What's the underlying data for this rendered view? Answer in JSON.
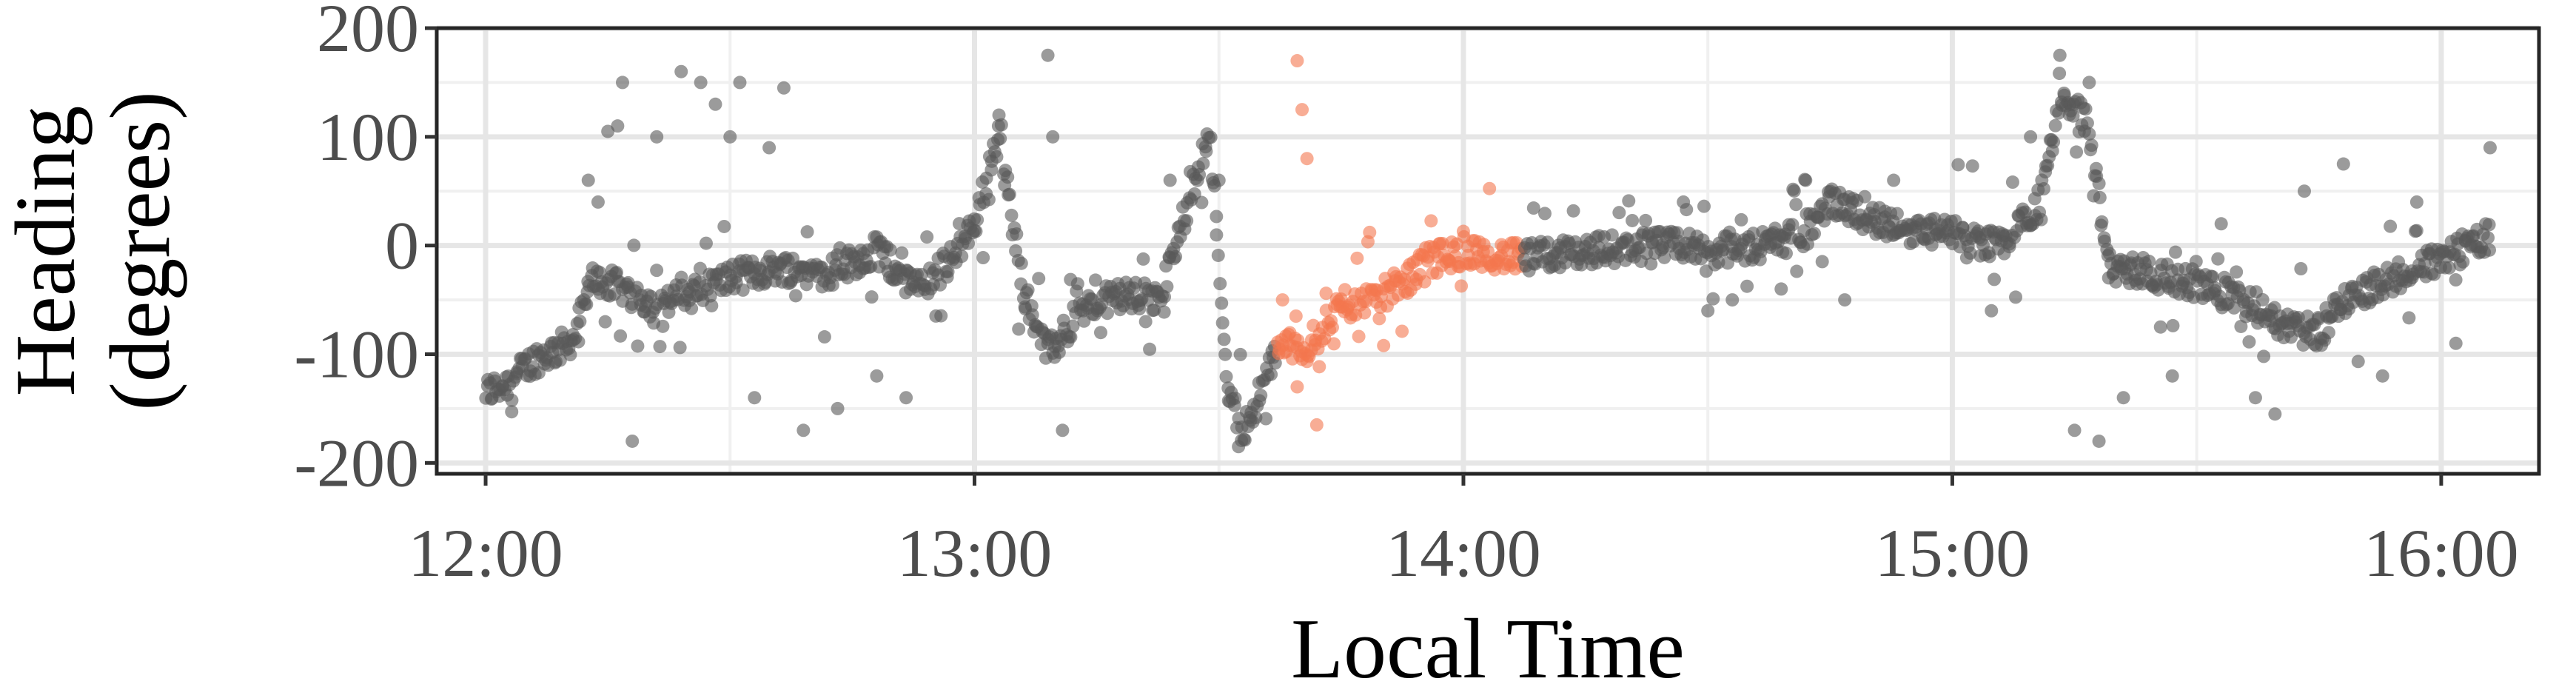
{
  "chart_data": {
    "type": "scatter",
    "xlabel": "Local Time",
    "ylabel_lines": [
      "Heading",
      "(degrees)"
    ],
    "xlim": [
      11.9,
      16.2
    ],
    "ylim": [
      -210,
      200
    ],
    "x_ticks": [
      12,
      13,
      14,
      15,
      16
    ],
    "x_tick_labels": [
      "12:00",
      "13:00",
      "14:00",
      "15:00",
      "16:00"
    ],
    "y_ticks": [
      -200,
      -100,
      0,
      100,
      200
    ],
    "y_tick_labels": [
      "-200",
      "-100",
      "0",
      "100",
      "200"
    ],
    "grid": true,
    "colors": {
      "default": "#595959",
      "highlight": "#f4764e"
    },
    "highlight_range": [
      13.62,
      14.12
    ],
    "trend": [
      [
        12.0,
        -135
      ],
      [
        12.05,
        -125
      ],
      [
        12.1,
        -105
      ],
      [
        12.15,
        -95
      ],
      [
        12.18,
        -85
      ],
      [
        12.22,
        -30
      ],
      [
        12.28,
        -40
      ],
      [
        12.35,
        -55
      ],
      [
        12.42,
        -45
      ],
      [
        12.5,
        -30
      ],
      [
        12.6,
        -20
      ],
      [
        12.7,
        -25
      ],
      [
        12.8,
        -5
      ],
      [
        12.88,
        -40
      ],
      [
        12.95,
        -15
      ],
      [
        13.0,
        20
      ],
      [
        13.05,
        100
      ],
      [
        13.1,
        -40
      ],
      [
        13.15,
        -100
      ],
      [
        13.22,
        -60
      ],
      [
        13.3,
        -45
      ],
      [
        13.38,
        -50
      ],
      [
        13.45,
        60
      ],
      [
        13.48,
        110
      ],
      [
        13.52,
        -140
      ],
      [
        13.55,
        -170
      ],
      [
        13.6,
        -120
      ],
      [
        13.62,
        -90
      ],
      [
        13.68,
        -95
      ],
      [
        13.74,
        -60
      ],
      [
        13.8,
        -50
      ],
      [
        13.88,
        -35
      ],
      [
        13.92,
        -15
      ],
      [
        14.0,
        -5
      ],
      [
        14.12,
        -12
      ],
      [
        14.25,
        -5
      ],
      [
        14.4,
        0
      ],
      [
        14.55,
        -5
      ],
      [
        14.7,
        10
      ],
      [
        14.75,
        40
      ],
      [
        14.8,
        30
      ],
      [
        14.9,
        15
      ],
      [
        15.0,
        10
      ],
      [
        15.1,
        0
      ],
      [
        15.18,
        40
      ],
      [
        15.22,
        130
      ],
      [
        15.28,
        110
      ],
      [
        15.32,
        -20
      ],
      [
        15.4,
        -25
      ],
      [
        15.5,
        -35
      ],
      [
        15.55,
        -45
      ],
      [
        15.62,
        -55
      ],
      [
        15.68,
        -75
      ],
      [
        15.75,
        -80
      ],
      [
        15.8,
        -50
      ],
      [
        15.9,
        -30
      ],
      [
        16.0,
        -10
      ],
      [
        16.05,
        0
      ],
      [
        16.1,
        10
      ]
    ],
    "outliers": [
      [
        12.21,
        60
      ],
      [
        12.23,
        40
      ],
      [
        12.25,
        105
      ],
      [
        12.27,
        110
      ],
      [
        12.28,
        150
      ],
      [
        12.3,
        -180
      ],
      [
        12.35,
        100
      ],
      [
        12.4,
        160
      ],
      [
        12.44,
        150
      ],
      [
        12.47,
        130
      ],
      [
        12.5,
        100
      ],
      [
        12.52,
        150
      ],
      [
        12.55,
        -140
      ],
      [
        12.58,
        90
      ],
      [
        12.61,
        145
      ],
      [
        12.65,
        -170
      ],
      [
        12.72,
        -150
      ],
      [
        12.8,
        -120
      ],
      [
        12.86,
        -140
      ],
      [
        13.05,
        120
      ],
      [
        13.15,
        175
      ],
      [
        13.16,
        100
      ],
      [
        13.18,
        -170
      ],
      [
        13.35,
        -70
      ],
      [
        13.4,
        60
      ],
      [
        13.5,
        60
      ],
      [
        13.54,
        -185
      ],
      [
        13.66,
        170
      ],
      [
        13.67,
        125
      ],
      [
        13.68,
        80
      ],
      [
        13.66,
        -130
      ],
      [
        13.7,
        -165
      ],
      [
        13.63,
        -50
      ],
      [
        14.45,
        40
      ],
      [
        14.5,
        -60
      ],
      [
        14.55,
        -50
      ],
      [
        14.65,
        -40
      ],
      [
        14.7,
        60
      ],
      [
        14.78,
        -50
      ],
      [
        14.88,
        60
      ],
      [
        15.08,
        -60
      ],
      [
        15.16,
        100
      ],
      [
        15.22,
        175
      ],
      [
        15.25,
        -170
      ],
      [
        15.28,
        150
      ],
      [
        15.3,
        -180
      ],
      [
        15.35,
        -140
      ],
      [
        15.45,
        -120
      ],
      [
        15.55,
        20
      ],
      [
        15.62,
        -140
      ],
      [
        15.66,
        -155
      ],
      [
        15.72,
        50
      ],
      [
        15.8,
        75
      ],
      [
        15.88,
        -120
      ],
      [
        15.95,
        40
      ],
      [
        16.03,
        -90
      ],
      [
        16.1,
        90
      ]
    ]
  }
}
